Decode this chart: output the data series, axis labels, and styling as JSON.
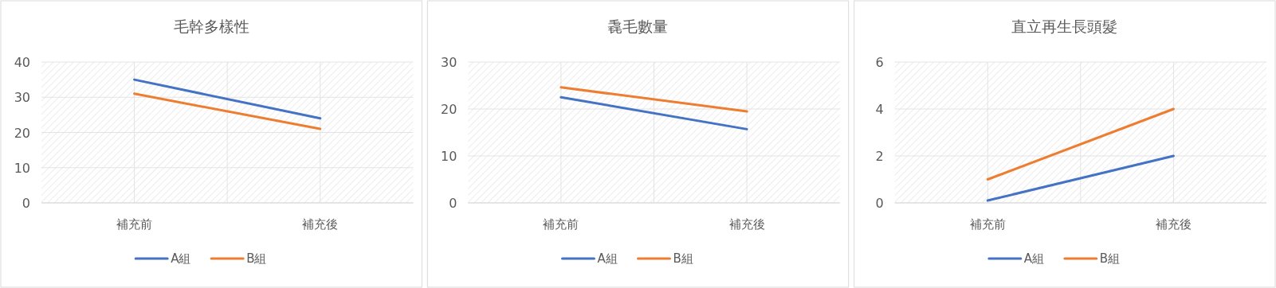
{
  "chart_data": [
    {
      "type": "line",
      "title": "毛幹多樣性",
      "categories": [
        "補充前",
        "補充後"
      ],
      "ylim": [
        0,
        40
      ],
      "yticks": [
        0,
        10,
        20,
        30,
        40
      ],
      "grid": true,
      "legend": "bottom",
      "series": [
        {
          "name": "A組",
          "color": "#4472c4",
          "values": [
            35,
            24
          ]
        },
        {
          "name": "B組",
          "color": "#ed7d31",
          "values": [
            31,
            21
          ]
        }
      ]
    },
    {
      "type": "line",
      "title": "毳毛數量",
      "categories": [
        "補充前",
        "補充後"
      ],
      "ylim": [
        0,
        30
      ],
      "yticks": [
        0,
        10,
        20,
        30
      ],
      "grid": true,
      "legend": "bottom",
      "series": [
        {
          "name": "A組",
          "color": "#4472c4",
          "values": [
            22.5,
            15.7
          ]
        },
        {
          "name": "B組",
          "color": "#ed7d31",
          "values": [
            24.6,
            19.5
          ]
        }
      ]
    },
    {
      "type": "line",
      "title": "直立再生長頭髮",
      "categories": [
        "補充前",
        "補充後"
      ],
      "ylim": [
        0,
        6
      ],
      "yticks": [
        0,
        2,
        4,
        6
      ],
      "grid": true,
      "legend": "bottom",
      "series": [
        {
          "name": "A組",
          "color": "#4472c4",
          "values": [
            0.1,
            2
          ]
        },
        {
          "name": "B組",
          "color": "#ed7d31",
          "values": [
            1,
            4
          ]
        }
      ]
    }
  ]
}
